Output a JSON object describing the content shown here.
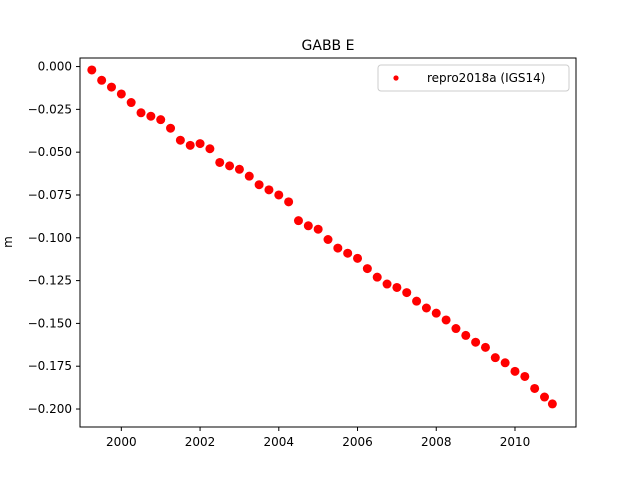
{
  "chart_data": {
    "type": "scatter",
    "title": "GABB E",
    "xlabel": "",
    "ylabel": "m",
    "xlim": [
      1998.95,
      2011.55
    ],
    "ylim": [
      -0.2105,
      0.005
    ],
    "xticks": [
      2000,
      2002,
      2004,
      2006,
      2008,
      2010
    ],
    "xtick_labels": [
      "2000",
      "2002",
      "2004",
      "2006",
      "2008",
      "2010"
    ],
    "yticks": [
      0.0,
      -0.025,
      -0.05,
      -0.075,
      -0.1,
      -0.125,
      -0.15,
      -0.175,
      -0.2
    ],
    "ytick_labels": [
      "0.000",
      "−0.025",
      "−0.050",
      "−0.075",
      "−0.100",
      "−0.125",
      "−0.150",
      "−0.175",
      "−0.200"
    ],
    "grid": false,
    "legend": {
      "position": "top-right"
    },
    "series": [
      {
        "name": "repro2018a (IGS14)",
        "color": "#ff0000",
        "marker": "point",
        "x": [
          1999.25,
          1999.5,
          1999.75,
          2000.0,
          2000.25,
          2000.5,
          2000.75,
          2001.0,
          2001.25,
          2001.5,
          2001.75,
          2002.0,
          2002.25,
          2002.5,
          2002.75,
          2003.0,
          2003.25,
          2003.5,
          2003.75,
          2004.0,
          2004.25,
          2004.5,
          2004.75,
          2005.0,
          2005.25,
          2005.5,
          2005.75,
          2006.0,
          2006.25,
          2006.5,
          2006.75,
          2007.0,
          2007.25,
          2007.5,
          2007.75,
          2008.0,
          2008.25,
          2008.5,
          2008.75,
          2009.0,
          2009.25,
          2009.5,
          2009.75,
          2010.0,
          2010.25,
          2010.5,
          2010.75,
          2010.95
        ],
        "y": [
          -0.002,
          -0.008,
          -0.012,
          -0.016,
          -0.021,
          -0.027,
          -0.029,
          -0.031,
          -0.036,
          -0.043,
          -0.046,
          -0.045,
          -0.048,
          -0.056,
          -0.058,
          -0.06,
          -0.064,
          -0.069,
          -0.072,
          -0.075,
          -0.079,
          -0.09,
          -0.093,
          -0.095,
          -0.101,
          -0.106,
          -0.109,
          -0.112,
          -0.118,
          -0.123,
          -0.127,
          -0.129,
          -0.132,
          -0.137,
          -0.141,
          -0.144,
          -0.148,
          -0.153,
          -0.157,
          -0.161,
          -0.164,
          -0.17,
          -0.173,
          -0.178,
          -0.181,
          -0.188,
          -0.193,
          -0.197
        ]
      }
    ]
  }
}
